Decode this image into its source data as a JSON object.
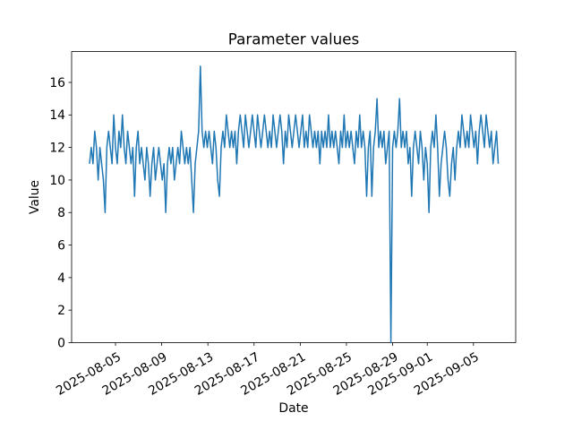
{
  "figure": {
    "title": "Parameter values",
    "xlabel": "Date",
    "ylabel": "Value"
  },
  "chart_data": {
    "type": "line",
    "title": "Parameter values",
    "xlabel": "Date",
    "ylabel": "Value",
    "line_color": "#1f77b4",
    "grid": false,
    "legend": null,
    "x_unit": "days since 2025-08-01 00:00",
    "xlim": [
      0.2,
      38.66
    ],
    "ylim": [
      0,
      17.9
    ],
    "y_ticks": [
      0,
      2,
      4,
      6,
      8,
      10,
      12,
      14,
      16
    ],
    "x_ticks": [
      {
        "d": 4,
        "label": "2025-08-05"
      },
      {
        "d": 8,
        "label": "2025-08-09"
      },
      {
        "d": 12,
        "label": "2025-08-13"
      },
      {
        "d": 16,
        "label": "2025-08-17"
      },
      {
        "d": 20,
        "label": "2025-08-21"
      },
      {
        "d": 24,
        "label": "2025-08-25"
      },
      {
        "d": 28,
        "label": "2025-08-29"
      },
      {
        "d": 31,
        "label": "2025-09-01"
      },
      {
        "d": 35,
        "label": "2025-09-05"
      }
    ],
    "x_start": 1.75,
    "x_step": 0.15,
    "n_points": 237,
    "y": [
      11,
      12,
      11,
      13,
      12,
      10,
      12,
      11,
      10,
      8,
      12,
      13,
      12,
      11,
      14,
      12,
      11,
      13,
      12,
      14,
      12,
      11,
      13,
      12,
      11,
      12,
      9,
      12,
      13,
      11,
      12,
      11,
      10,
      12,
      11,
      9,
      11,
      12,
      10,
      11,
      12,
      11,
      10,
      11,
      8,
      11,
      12,
      11,
      12,
      10,
      11,
      12,
      11,
      13,
      12,
      11,
      12,
      11,
      12,
      10,
      8,
      11,
      12,
      13,
      17,
      13,
      12,
      13,
      12,
      13,
      12,
      11,
      13,
      12,
      10,
      9,
      12,
      13,
      12,
      14,
      13,
      12,
      13,
      12,
      13,
      11,
      13,
      14,
      13,
      12,
      14,
      13,
      12,
      13,
      14,
      13,
      12,
      14,
      13,
      12,
      13,
      14,
      13,
      12,
      13,
      12,
      14,
      13,
      12,
      13,
      14,
      13,
      11,
      13,
      12,
      14,
      13,
      12,
      13,
      14,
      13,
      12,
      13,
      14,
      12,
      13,
      12,
      14,
      13,
      12,
      13,
      12,
      13,
      11,
      13,
      12,
      13,
      12,
      14,
      12,
      13,
      12,
      13,
      12,
      11,
      13,
      12,
      14,
      12,
      13,
      12,
      13,
      12,
      11,
      13,
      12,
      14,
      12,
      13,
      12,
      9,
      12,
      13,
      9,
      12,
      13,
      15,
      12,
      13,
      12,
      13,
      11,
      12,
      13,
      0,
      12,
      13,
      12,
      13,
      15,
      12,
      13,
      12,
      13,
      11,
      12,
      9,
      12,
      13,
      12,
      11,
      13,
      12,
      10,
      12,
      11,
      8,
      12,
      13,
      12,
      14,
      12,
      9,
      11,
      12,
      13,
      12,
      10,
      9,
      11,
      12,
      10,
      12,
      13,
      12,
      14,
      13,
      12,
      13,
      12,
      14,
      13,
      12,
      13,
      11,
      13,
      14,
      13,
      12,
      14,
      13,
      12,
      13,
      11,
      12,
      13,
      11
    ]
  }
}
